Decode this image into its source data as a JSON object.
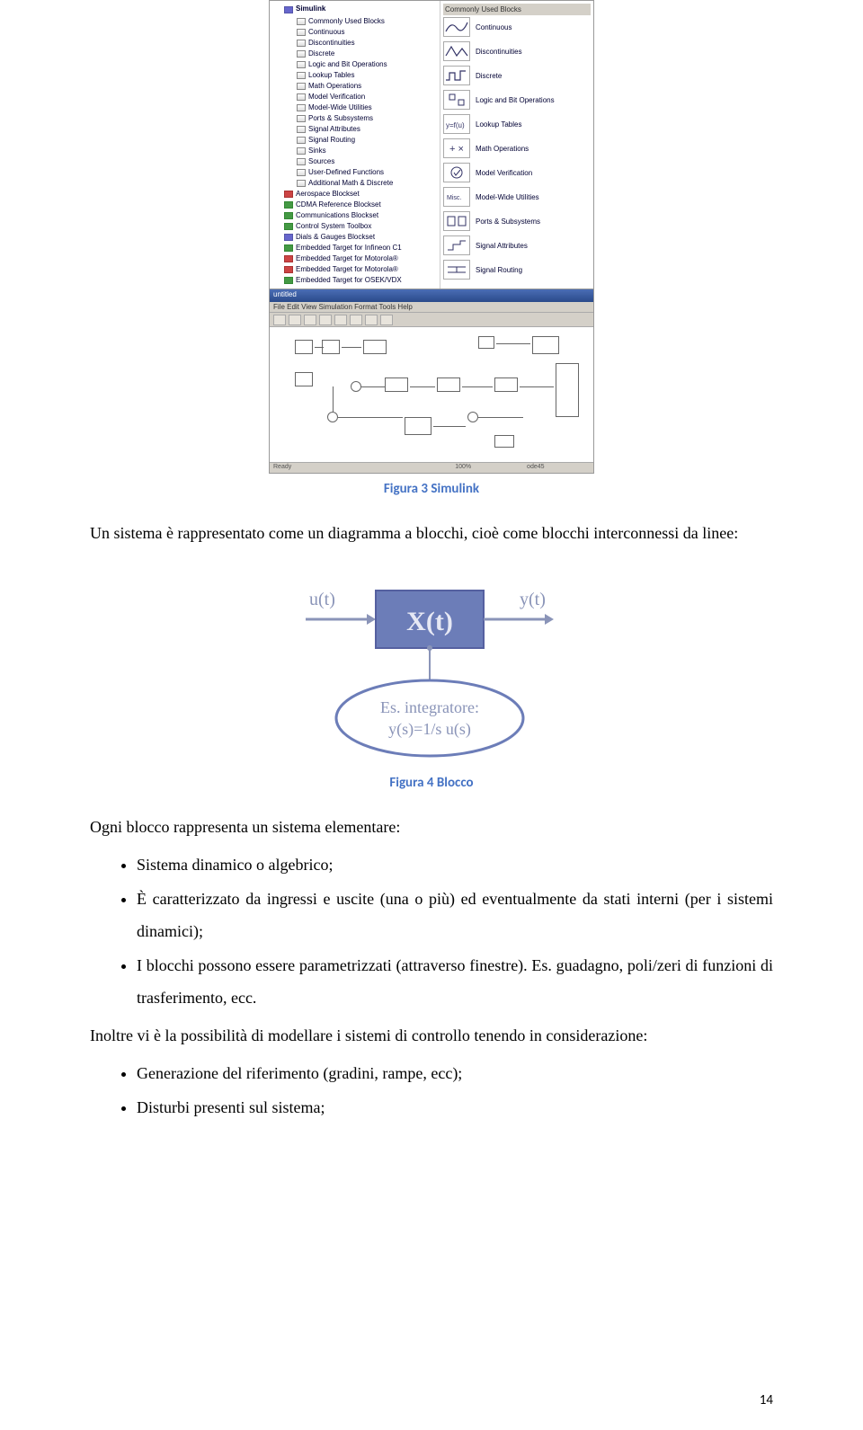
{
  "page_number": "14",
  "caption1": "Figura 3 Simulink",
  "caption2": "Figura 4 Blocco",
  "para1": "Un sistema è rappresentato come un diagramma a blocchi, cioè come blocchi interconnessi da linee:",
  "para2": "Ogni blocco rappresenta un sistema elementare:",
  "bullets1": [
    "Sistema dinamico o algebrico;",
    "È caratterizzato da ingressi e uscite (una o più) ed eventualmente da stati interni (per i sistemi dinamici);",
    "I blocchi possono essere parametrizzati (attraverso finestre). Es. guadagno, poli/zeri di funzioni di trasferimento, ecc."
  ],
  "para3": "Inoltre vi è la possibilità di modellare i sistemi di controllo tenendo in considerazione:",
  "bullets2": [
    "Generazione del riferimento (gradini, rampe, ecc);",
    "Disturbi presenti sul sistema;"
  ],
  "simulink": {
    "root": "Simulink",
    "categories": [
      "Commonly Used Blocks",
      "Continuous",
      "Discontinuities",
      "Discrete",
      "Logic and Bit Operations",
      "Lookup Tables",
      "Math Operations",
      "Model Verification",
      "Model-Wide Utilities",
      "Ports & Subsystems",
      "Signal Attributes",
      "Signal Routing",
      "Sinks",
      "Sources",
      "User-Defined Functions",
      "Additional Math & Discrete"
    ],
    "blocksets": [
      "Aerospace Blockset",
      "CDMA Reference Blockset",
      "Communications Blockset",
      "Control System Toolbox",
      "Dials & Gauges Blockset",
      "Embedded Target for Infineon C1",
      "Embedded Target for Motorola®",
      "Embedded Target for Motorola®",
      "Embedded Target for OSEK/VDX"
    ],
    "blocks_title": "Commonly Used Blocks",
    "block_items": [
      "Continuous",
      "Discontinuities",
      "Discrete",
      "Logic and Bit Operations",
      "Lookup Tables",
      "Math Operations",
      "Model Verification",
      "Model-Wide Utilities",
      "Ports & Subsystems",
      "Signal Attributes",
      "Signal Routing"
    ],
    "model_menus": "File  Edit  View  Simulation  Format  Tools  Help",
    "status_left": "Ready",
    "status_mid": "100%",
    "status_right": "ode45"
  },
  "blocco": {
    "input": "u(t)",
    "state": "X(t)",
    "output": "y(t)",
    "note": "Es. integratore:\ny(s)=1/s u(s)",
    "box_color": "#6c7db8",
    "text_color": "#8a94b8",
    "ellipse_stroke": "#6c7db8"
  },
  "colors": {
    "caption": "#4472c4",
    "text": "#000000",
    "background": "#ffffff"
  }
}
